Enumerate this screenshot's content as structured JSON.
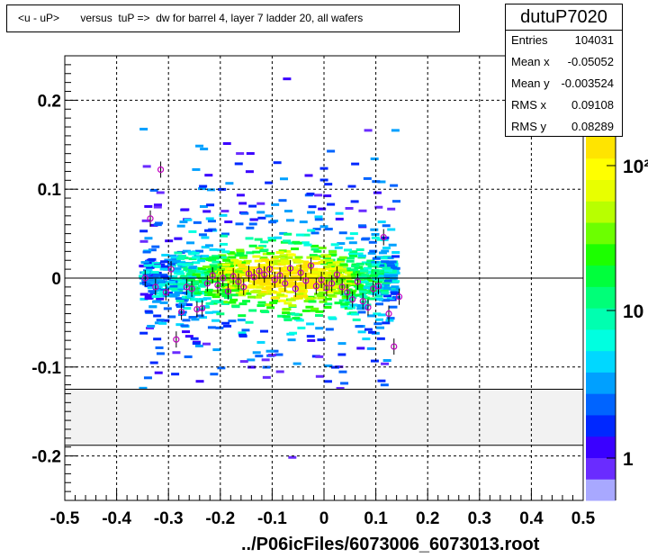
{
  "title": "<u - uP>       versus  tuP =>  dw for barrel 4, layer 7 ladder 20, all wafers",
  "stats": {
    "name": "dutuP7020",
    "rows": [
      {
        "key": "Entries",
        "value": "104031"
      },
      {
        "key": "Mean x",
        "value": "-0.05052"
      },
      {
        "key": "Mean y",
        "value": "-0.003524"
      },
      {
        "key": "RMS x",
        "value": "0.09108"
      },
      {
        "key": "RMS y",
        "value": "0.08289"
      }
    ]
  },
  "footer": "../P06icFiles/6073006_6073013.root",
  "chart_data": {
    "type": "heatmap",
    "title": "<u - uP>       versus  tuP =>  dw for barrel 4, layer 7 ladder 20, all wafers",
    "xlim": [
      -0.5,
      0.5
    ],
    "ylim": [
      -0.25,
      0.25
    ],
    "x_ticks": [
      -0.5,
      -0.4,
      -0.3,
      -0.2,
      -0.1,
      0,
      0.1,
      0.2,
      0.3,
      0.4,
      0.5
    ],
    "x_tick_labels": [
      "-0.5",
      "-0.4",
      "-0.3",
      "-0.2",
      "-0.1",
      "0",
      "0.1",
      "0.2",
      "0.3",
      "0.4",
      "0.5"
    ],
    "y_ticks": [
      -0.2,
      -0.1,
      0,
      0.1,
      0.2
    ],
    "y_tick_labels": [
      "-0.2",
      "-0.1",
      "0",
      "0.1",
      "0.2"
    ],
    "grid": true,
    "z_scale": "log",
    "z_tick_labels": [
      "1",
      "10",
      "10²"
    ],
    "excluded_band_y": [
      -0.188,
      -0.125
    ],
    "profile_points": [
      {
        "x": -0.345,
        "y": 0.0
      },
      {
        "x": -0.335,
        "y": 0.067
      },
      {
        "x": -0.325,
        "y": -0.01
      },
      {
        "x": -0.315,
        "y": 0.122
      },
      {
        "x": -0.305,
        "y": -0.016
      },
      {
        "x": -0.295,
        "y": 0.01
      },
      {
        "x": -0.285,
        "y": -0.069
      },
      {
        "x": -0.275,
        "y": -0.038
      },
      {
        "x": -0.265,
        "y": -0.01
      },
      {
        "x": -0.255,
        "y": -0.012
      },
      {
        "x": -0.245,
        "y": -0.035
      },
      {
        "x": -0.235,
        "y": -0.034
      },
      {
        "x": -0.225,
        "y": -0.006
      },
      {
        "x": -0.215,
        "y": 0.003
      },
      {
        "x": -0.205,
        "y": -0.008
      },
      {
        "x": -0.195,
        "y": 0.0
      },
      {
        "x": -0.185,
        "y": -0.015
      },
      {
        "x": -0.175,
        "y": 0.002
      },
      {
        "x": -0.165,
        "y": -0.004
      },
      {
        "x": -0.155,
        "y": -0.01
      },
      {
        "x": -0.145,
        "y": 0.005
      },
      {
        "x": -0.135,
        "y": 0.001
      },
      {
        "x": -0.125,
        "y": 0.008
      },
      {
        "x": -0.115,
        "y": 0.004
      },
      {
        "x": -0.105,
        "y": 0.01
      },
      {
        "x": -0.095,
        "y": -0.002
      },
      {
        "x": -0.085,
        "y": 0.003
      },
      {
        "x": -0.075,
        "y": -0.006
      },
      {
        "x": -0.065,
        "y": 0.011
      },
      {
        "x": -0.055,
        "y": -0.012
      },
      {
        "x": -0.045,
        "y": 0.006
      },
      {
        "x": -0.035,
        "y": -0.003
      },
      {
        "x": -0.025,
        "y": 0.014
      },
      {
        "x": -0.015,
        "y": -0.009
      },
      {
        "x": -0.005,
        "y": -0.002
      },
      {
        "x": 0.005,
        "y": -0.011
      },
      {
        "x": 0.015,
        "y": -0.006
      },
      {
        "x": 0.025,
        "y": 0.004
      },
      {
        "x": 0.035,
        "y": -0.01
      },
      {
        "x": 0.045,
        "y": -0.016
      },
      {
        "x": 0.055,
        "y": -0.024
      },
      {
        "x": 0.065,
        "y": -0.004
      },
      {
        "x": 0.075,
        "y": -0.026
      },
      {
        "x": 0.085,
        "y": -0.033
      },
      {
        "x": 0.095,
        "y": -0.012
      },
      {
        "x": 0.105,
        "y": -0.009
      },
      {
        "x": 0.115,
        "y": 0.046
      },
      {
        "x": 0.125,
        "y": -0.04
      },
      {
        "x": 0.135,
        "y": -0.077
      },
      {
        "x": 0.145,
        "y": -0.021
      }
    ]
  },
  "colors": {
    "palette": [
      "#a8a8ff",
      "#6a2cff",
      "#3a00ff",
      "#0028ff",
      "#0064ff",
      "#00a0ff",
      "#00d8ff",
      "#00ffe0",
      "#00ffb0",
      "#00ff78",
      "#00ff3c",
      "#1cff00",
      "#6cff00",
      "#b8ff00",
      "#e8ff00",
      "#ffff00",
      "#ffe400"
    ],
    "profile_marker": "#c000c0",
    "excluded_band": "#f2f2f2"
  }
}
